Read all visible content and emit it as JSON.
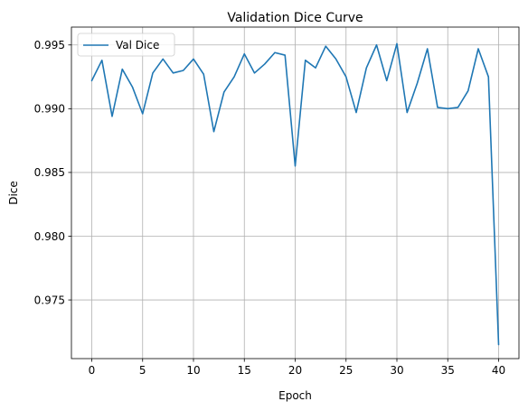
{
  "chart_data": {
    "type": "line",
    "title": "Validation Dice Curve",
    "xlabel": "Epoch",
    "ylabel": "Dice",
    "xlim": [
      -2,
      42
    ],
    "ylim": [
      0.9704,
      0.9964
    ],
    "xticks": [
      0,
      5,
      10,
      15,
      20,
      25,
      30,
      35,
      40
    ],
    "xtick_labels": [
      "0",
      "5",
      "10",
      "15",
      "20",
      "25",
      "30",
      "35",
      "40"
    ],
    "yticks": [
      0.975,
      0.98,
      0.985,
      0.99,
      0.995
    ],
    "ytick_labels": [
      "0.975",
      "0.980",
      "0.985",
      "0.990",
      "0.995"
    ],
    "grid": true,
    "legend_position": "upper-left",
    "series": [
      {
        "name": "Val Dice",
        "color": "#1f77b4",
        "x": [
          0,
          1,
          2,
          3,
          4,
          5,
          6,
          7,
          8,
          9,
          10,
          11,
          12,
          13,
          14,
          15,
          16,
          17,
          18,
          19,
          20,
          21,
          22,
          23,
          24,
          25,
          26,
          27,
          28,
          29,
          30,
          31,
          32,
          33,
          34,
          35,
          36,
          37,
          38,
          39,
          40
        ],
        "y": [
          0.9922,
          0.9938,
          0.9894,
          0.9931,
          0.9917,
          0.9896,
          0.9928,
          0.9939,
          0.9928,
          0.993,
          0.9939,
          0.9927,
          0.9882,
          0.9913,
          0.9925,
          0.9943,
          0.9928,
          0.9935,
          0.9944,
          0.9942,
          0.9855,
          0.9938,
          0.9932,
          0.9949,
          0.9939,
          0.9925,
          0.9897,
          0.9932,
          0.995,
          0.9922,
          0.9951,
          0.9897,
          0.992,
          0.9947,
          0.9901,
          0.99,
          0.9901,
          0.9914,
          0.9947,
          0.9925,
          0.9715
        ]
      }
    ]
  }
}
